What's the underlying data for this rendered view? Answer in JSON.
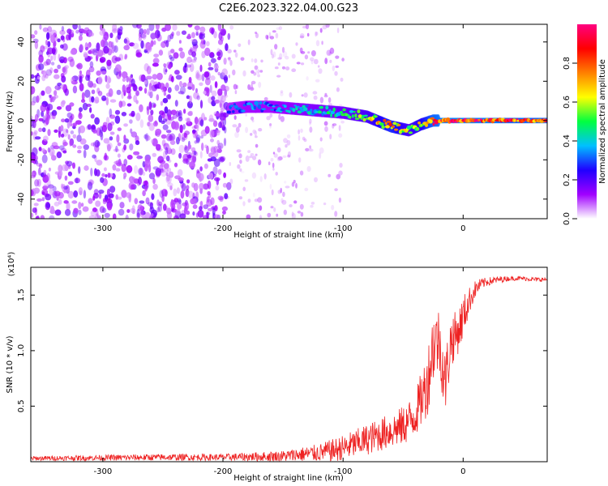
{
  "figure": {
    "title": "C2E6.2023.322.04.00.G23"
  },
  "colors": {
    "snr_line": "#ee2222",
    "colormap": [
      "#ffffff",
      "#a000ff",
      "#2000ff",
      "#00c0ff",
      "#00ff40",
      "#ffff00",
      "#ff8000",
      "#ff0000",
      "#ff0080"
    ]
  },
  "chart_data": [
    {
      "type": "heatmap",
      "xlabel": "Height of straight line (km)",
      "ylabel": "Frequency (Hz)",
      "xlim": [
        -360,
        70
      ],
      "ylim": [
        -50,
        49
      ],
      "x_ticks": [
        -300,
        -200,
        -100,
        0
      ],
      "y_ticks": [
        -40,
        -20,
        0,
        20,
        40
      ],
      "colorbar": {
        "label": "Normalized spectral amplitude",
        "range": [
          0,
          1
        ],
        "ticks": [
          "0.0",
          "0.2",
          "0.4",
          "0.6",
          "0.8"
        ],
        "tick_values": [
          0,
          0.2,
          0.4,
          0.6,
          0.8
        ]
      },
      "ridge": {
        "x": [
          -195,
          -180,
          -160,
          -140,
          -120,
          -100,
          -80,
          -60,
          -45,
          -35,
          -25,
          -15,
          0,
          20,
          40,
          70
        ],
        "y": [
          6,
          7,
          7,
          6,
          5,
          4,
          2,
          -3,
          -5,
          -2,
          0,
          0,
          0,
          0,
          0,
          0
        ],
        "amplitude": [
          0.3,
          0.35,
          0.35,
          0.4,
          0.45,
          0.5,
          0.6,
          0.8,
          0.6,
          0.7,
          0.9,
          0.95,
          0.95,
          0.95,
          0.9,
          0.9
        ]
      },
      "noise": {
        "dense_region_x": [
          -360,
          -195
        ],
        "dense_amplitude": 0.15,
        "sparse_region_x": [
          -195,
          -100
        ],
        "sparse_amplitude": 0.05
      }
    },
    {
      "type": "line",
      "xlabel": "Height of straight line (km)",
      "ylabel": "SNR (10 * v/v)",
      "y_multiplier_label": "(x10⁴)",
      "xlim": [
        -360,
        70
      ],
      "ylim": [
        0,
        1.75
      ],
      "x_ticks": [
        -300,
        -200,
        -100,
        0
      ],
      "y_ticks": [
        0.5,
        1.0,
        1.5
      ],
      "y_tick_labels": [
        "0.5",
        "1.0",
        "1.5"
      ],
      "series": [
        {
          "x": [
            -360,
            -250,
            -200,
            -150,
            -120,
            -100,
            -80,
            -60,
            -50,
            -40,
            -30,
            -25,
            -20,
            -15,
            -10,
            -5,
            0,
            5,
            10,
            15,
            20,
            30,
            40,
            50,
            60,
            70
          ],
          "y": [
            0.03,
            0.04,
            0.04,
            0.05,
            0.08,
            0.12,
            0.2,
            0.28,
            0.32,
            0.42,
            0.7,
            1.05,
            1.1,
            0.7,
            1.1,
            1.15,
            1.3,
            1.45,
            1.55,
            1.6,
            1.62,
            1.64,
            1.65,
            1.65,
            1.64,
            1.64
          ],
          "noise": [
            0.02,
            0.03,
            0.03,
            0.05,
            0.08,
            0.12,
            0.14,
            0.16,
            0.18,
            0.2,
            0.3,
            0.35,
            0.3,
            0.3,
            0.25,
            0.2,
            0.2,
            0.12,
            0.08,
            0.05,
            0.04,
            0.03,
            0.02,
            0.02,
            0.02,
            0.02
          ]
        }
      ]
    }
  ]
}
